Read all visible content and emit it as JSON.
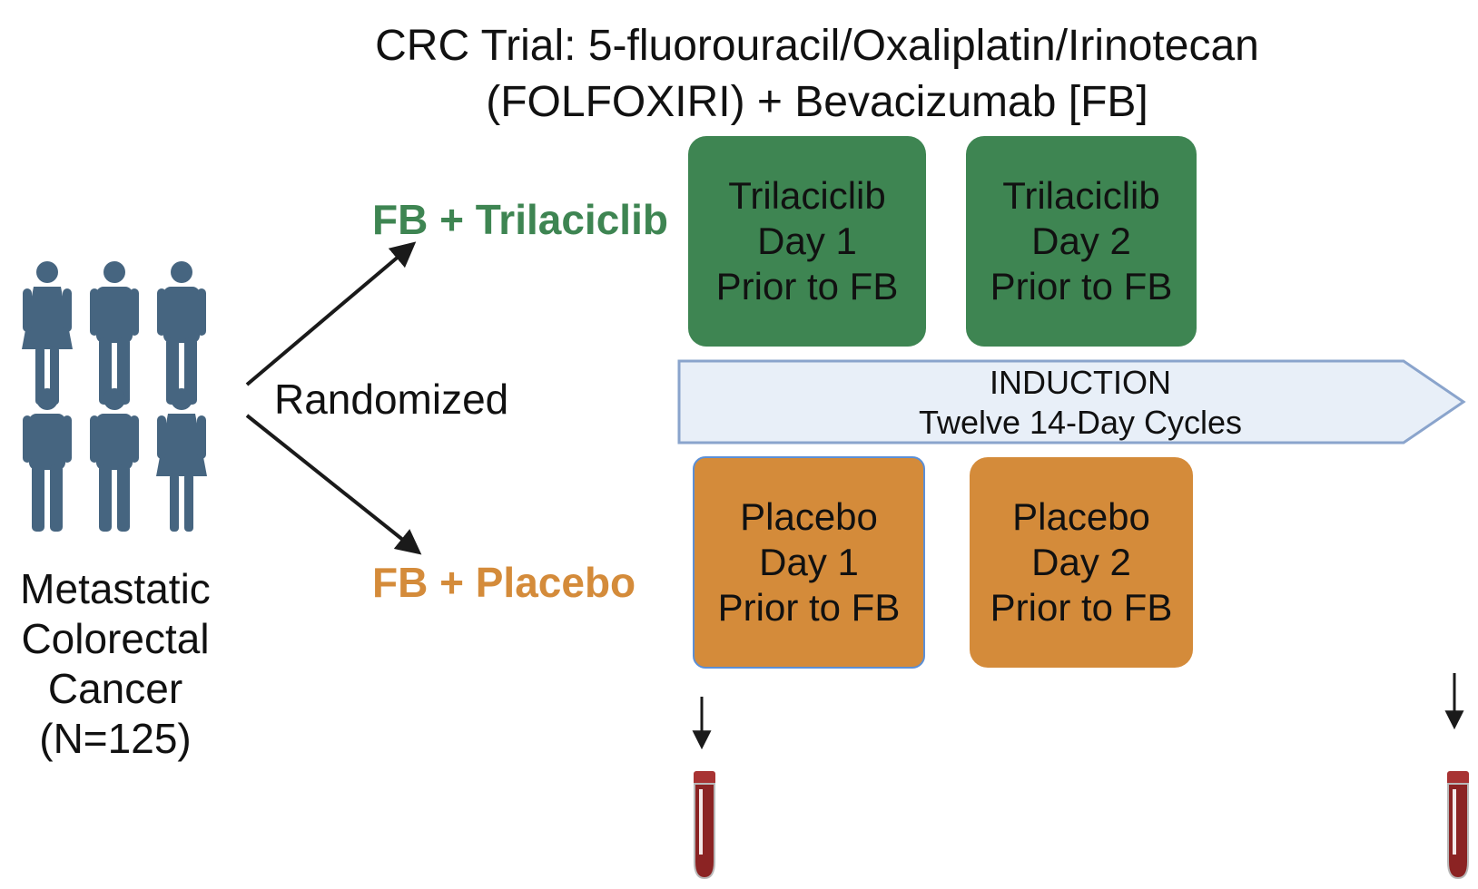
{
  "title": {
    "line1": "CRC Trial: 5-fluorouracil/Oxaliplatin/Irinotecan",
    "line2": "(FOLFOXIRI) + Bevacizumab [FB]"
  },
  "population": {
    "line1": "Metastatic",
    "line2": "Colorectal",
    "line3": "Cancer",
    "line4": "(N=125)"
  },
  "randomization": {
    "label": "Randomized"
  },
  "arms": {
    "trilaciclib": {
      "label": "FB + Trilaciclib",
      "color": "#3e8552"
    },
    "placebo": {
      "label": "FB + Placebo",
      "color": "#d48b3a"
    }
  },
  "boxes": {
    "tri_day1": {
      "line1": "Trilaciclib",
      "line2": "Day 1",
      "line3": "Prior to FB"
    },
    "tri_day2": {
      "line1": "Trilaciclib",
      "line2": "Day 2",
      "line3": "Prior to FB"
    },
    "pla_day1": {
      "line1": "Placebo",
      "line2": "Day 1",
      "line3": "Prior to FB"
    },
    "pla_day2": {
      "line1": "Placebo",
      "line2": "Day 2",
      "line3": "Prior to FB"
    }
  },
  "induction": {
    "line1": "INDUCTION",
    "line2": "Twelve 14-Day Cycles"
  },
  "icons": {
    "people": "people-group-icon",
    "tube": "blood-tube-icon"
  },
  "colors": {
    "person": "#466580",
    "induction_fill": "#e8eff8",
    "induction_border": "#8aa4cc",
    "blood": "#8b2323"
  }
}
